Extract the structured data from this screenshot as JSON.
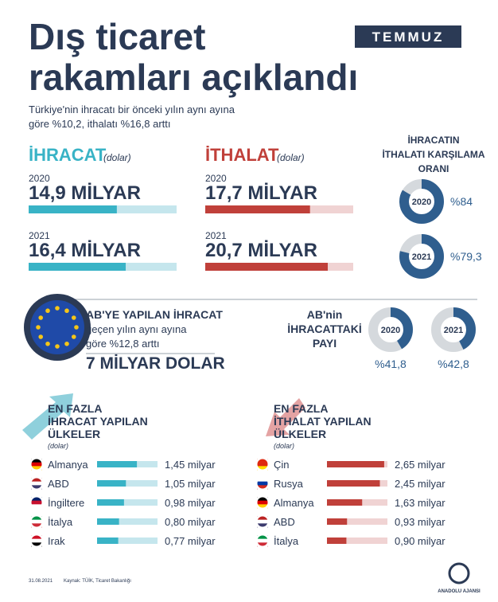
{
  "header": {
    "title_line1": "Dış ticaret",
    "title_line2": "rakamları açıklandı",
    "badge": "TEMMUZ",
    "subtitle_line1": "Türkiye'nin ihracatı bir önceki yılın aynı ayına",
    "subtitle_line2": "göre %10,2, ithalatı %16,8 arttı"
  },
  "exports": {
    "title": "İHRACAT",
    "unit": "(dolar)",
    "xlim": [
      0,
      25
    ],
    "items": [
      {
        "year": "2020",
        "value": 14.9,
        "label": "14,9 MİLYAR"
      },
      {
        "year": "2021",
        "value": 16.4,
        "label": "16,4 MİLYAR"
      }
    ]
  },
  "imports": {
    "title": "İTHALAT",
    "unit": "(dolar)",
    "xlim": [
      0,
      25
    ],
    "items": [
      {
        "year": "2020",
        "value": 17.7,
        "label": "17,7 MİLYAR"
      },
      {
        "year": "2021",
        "value": 20.7,
        "label": "20,7 MİLYAR"
      }
    ]
  },
  "coverage": {
    "title_lines": [
      "İHRACATIN",
      "İTHALATI KARŞILAMA",
      "ORANI"
    ],
    "xlim": [
      0,
      100
    ],
    "items": [
      {
        "year": "2020",
        "value": 84,
        "label": "%84"
      },
      {
        "year": "2021",
        "value": 79.3,
        "label": "%79,3"
      }
    ]
  },
  "eu": {
    "line1": "AB'YE YAPILAN İHRACAT",
    "line2": "geçen yılın aynı ayına",
    "line3": "göre %12,8 arttı",
    "amount": "7 MİLYAR DOLAR"
  },
  "eu_share": {
    "title_lines": [
      "AB'nin",
      "İHRACATTAKİ",
      "PAYI"
    ],
    "xlim": [
      0,
      100
    ],
    "items": [
      {
        "year": "2020",
        "value": 41.8,
        "label": "%41,8"
      },
      {
        "year": "2021",
        "value": 42.8,
        "label": "%42,8"
      }
    ]
  },
  "top_exports": {
    "title_lines": [
      "EN FAZLA",
      "İHRACAT YAPILAN",
      "ÜLKELER"
    ],
    "unit": "(dolar)",
    "xlim": [
      0,
      2.2
    ],
    "items": [
      {
        "country": "Almanya",
        "value": 1.45,
        "label": "1,45 milyar"
      },
      {
        "country": "ABD",
        "value": 1.05,
        "label": "1,05 milyar"
      },
      {
        "country": "İngiltere",
        "value": 0.98,
        "label": "0,98 milyar"
      },
      {
        "country": "İtalya",
        "value": 0.8,
        "label": "0,80 milyar"
      },
      {
        "country": "Irak",
        "value": 0.77,
        "label": "0,77 milyar"
      }
    ]
  },
  "top_imports": {
    "title_lines": [
      "EN FAZLA",
      "İTHALAT YAPILAN",
      "ÜLKELER"
    ],
    "unit": "(dolar)",
    "xlim": [
      0,
      2.8
    ],
    "items": [
      {
        "country": "Çin",
        "value": 2.65,
        "label": "2,65 milyar"
      },
      {
        "country": "Rusya",
        "value": 2.45,
        "label": "2,45 milyar"
      },
      {
        "country": "Almanya",
        "value": 1.63,
        "label": "1,63 milyar"
      },
      {
        "country": "ABD",
        "value": 0.93,
        "label": "0,93 milyar"
      },
      {
        "country": "İtalya",
        "value": 0.9,
        "label": "0,90 milyar"
      }
    ]
  },
  "footer": {
    "date": "31.08.2021",
    "source": "Kaynak: TÜİK, Ticaret Bakanlığı",
    "logo": "ANADOLU AJANSI"
  }
}
